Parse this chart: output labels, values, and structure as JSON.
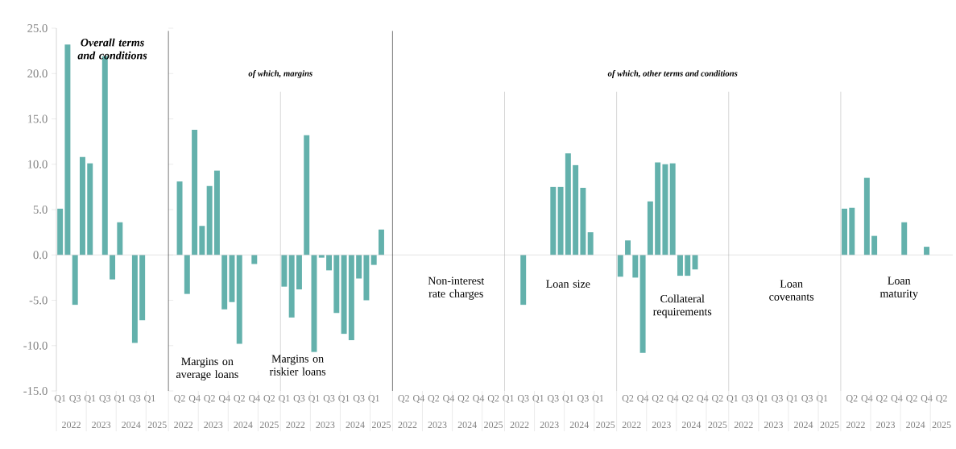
{
  "chart_data": [
    {
      "type": "bar",
      "title": "Overall terms and conditions",
      "color": "#63b1ac",
      "ylim": [
        -15,
        25
      ],
      "yticks": [
        {
          "value": -15,
          "label": "-15.0"
        },
        {
          "value": -10,
          "label": "-10.0"
        },
        {
          "value": -5,
          "label": "-5.0"
        },
        {
          "value": 0,
          "label": "0.0"
        },
        {
          "value": 5,
          "label": "5.0"
        },
        {
          "value": 10,
          "label": "10.0"
        },
        {
          "value": 15,
          "label": "15.0"
        },
        {
          "value": 20,
          "label": "20.0"
        },
        {
          "value": 25,
          "label": "25.0"
        }
      ],
      "categories": [
        "Q1",
        null,
        "Q3",
        null,
        "Q1",
        null,
        "Q3",
        null,
        "Q1",
        null,
        "Q3",
        null,
        "Q1",
        null,
        null
      ],
      "values": [
        5.1,
        23.2,
        -5.5,
        10.8,
        10.1,
        null,
        21.9,
        -2.7,
        3.6,
        null,
        -9.7,
        -7.2,
        null,
        null,
        null
      ],
      "annotations": [
        "2022",
        "2023",
        "2024",
        "2025"
      ]
    },
    {
      "type": "other",
      "title": "of which, margins"
    },
    {
      "type": "bar",
      "title": "Margins on average loans",
      "color": "#63b1ac",
      "ylim": [
        -15,
        25
      ],
      "tick_labels": "x",
      "categories": [
        null,
        "Q2",
        null,
        "Q4",
        null,
        "Q2",
        null,
        "Q4",
        null,
        "Q2",
        null,
        "Q4",
        null,
        "Q2",
        null
      ],
      "values": [
        null,
        8.1,
        -4.3,
        13.8,
        3.2,
        7.6,
        9.3,
        -6.0,
        -5.2,
        -9.8,
        null,
        -1.0,
        null,
        null,
        null
      ],
      "annotations": [
        "2022",
        "2023",
        "2024",
        "2025"
      ]
    },
    {
      "type": "bar",
      "title": "Margins on riskier loans",
      "color": "#63b1ac",
      "ylim": [
        -15,
        25
      ],
      "tick_labels": "x",
      "categories": [
        "Q1",
        null,
        "Q3",
        null,
        "Q1",
        null,
        "Q3",
        null,
        "Q1",
        null,
        "Q3",
        null,
        "Q1",
        null,
        null
      ],
      "values": [
        -3.5,
        -6.9,
        -3.8,
        13.2,
        -10.7,
        -0.3,
        -1.7,
        -6.4,
        -8.7,
        -9.4,
        -2.6,
        -5.0,
        -1.1,
        2.8,
        null
      ],
      "annotations": [
        "2022",
        "2023",
        "2024",
        "2025"
      ]
    },
    {
      "type": "other",
      "title": "of which, other terms and conditions"
    },
    {
      "type": "bar",
      "title": "Non-interest rate charges",
      "color": "#63b1ac",
      "ylim": [
        -15,
        25
      ],
      "tick_labels": "x",
      "categories": [
        null,
        "Q2",
        null,
        "Q4",
        null,
        "Q2",
        null,
        "Q4",
        null,
        "Q2",
        null,
        "Q4",
        null,
        "Q2",
        null
      ],
      "values": [
        null,
        null,
        null,
        null,
        null,
        null,
        null,
        null,
        null,
        null,
        null,
        null,
        null,
        null,
        null
      ],
      "annotations": [
        "2022",
        "2023",
        "2024",
        "2025"
      ]
    },
    {
      "type": "bar",
      "title": "Loan size",
      "color": "#63b1ac",
      "ylim": [
        -15,
        25
      ],
      "tick_labels": "x",
      "categories": [
        "Q1",
        null,
        "Q3",
        null,
        "Q1",
        null,
        "Q3",
        null,
        "Q1",
        null,
        "Q3",
        null,
        "Q1",
        null,
        null
      ],
      "values": [
        null,
        null,
        -5.5,
        null,
        null,
        null,
        7.5,
        7.5,
        11.2,
        9.9,
        7.4,
        2.5,
        null,
        null,
        null
      ],
      "annotations": [
        "2022",
        "2023",
        "2024",
        "2025"
      ]
    },
    {
      "type": "bar",
      "title": "Collateral requirements",
      "color": "#63b1ac",
      "ylim": [
        -15,
        25
      ],
      "tick_labels": "x",
      "categories": [
        null,
        "Q2",
        null,
        "Q4",
        null,
        "Q2",
        null,
        "Q4",
        null,
        "Q2",
        null,
        "Q4",
        null,
        "Q2",
        null
      ],
      "values": [
        -2.4,
        1.6,
        -2.5,
        -10.8,
        5.9,
        10.2,
        10.0,
        10.1,
        -2.3,
        -2.3,
        -1.6,
        null,
        null,
        null,
        null
      ],
      "annotations": [
        "2022",
        "2023",
        "2024",
        "2025"
      ]
    },
    {
      "type": "bar",
      "title": "Loan covenants",
      "color": "#63b1ac",
      "ylim": [
        -15,
        25
      ],
      "tick_labels": "x",
      "categories": [
        "Q1",
        null,
        "Q3",
        null,
        "Q1",
        null,
        "Q3",
        null,
        "Q1",
        null,
        "Q3",
        null,
        "Q1",
        null,
        null
      ],
      "values": [
        null,
        null,
        null,
        null,
        null,
        null,
        null,
        null,
        null,
        null,
        null,
        null,
        null,
        null,
        null
      ],
      "annotations": [
        "2022",
        "2023",
        "2024",
        "2025"
      ]
    },
    {
      "type": "bar",
      "title": "Loan maturity",
      "color": "#63b1ac",
      "ylim": [
        -15,
        25
      ],
      "tick_labels": "x",
      "categories": [
        null,
        "Q2",
        null,
        "Q4",
        null,
        "Q2",
        null,
        "Q4",
        null,
        "Q2",
        null,
        "Q4",
        null,
        "Q2",
        null
      ],
      "values": [
        5.1,
        5.2,
        null,
        8.5,
        2.1,
        null,
        null,
        null,
        3.6,
        null,
        null,
        0.9,
        null,
        null,
        null
      ],
      "annotations": [
        "2022",
        "2023",
        "2024",
        "2025"
      ]
    }
  ]
}
